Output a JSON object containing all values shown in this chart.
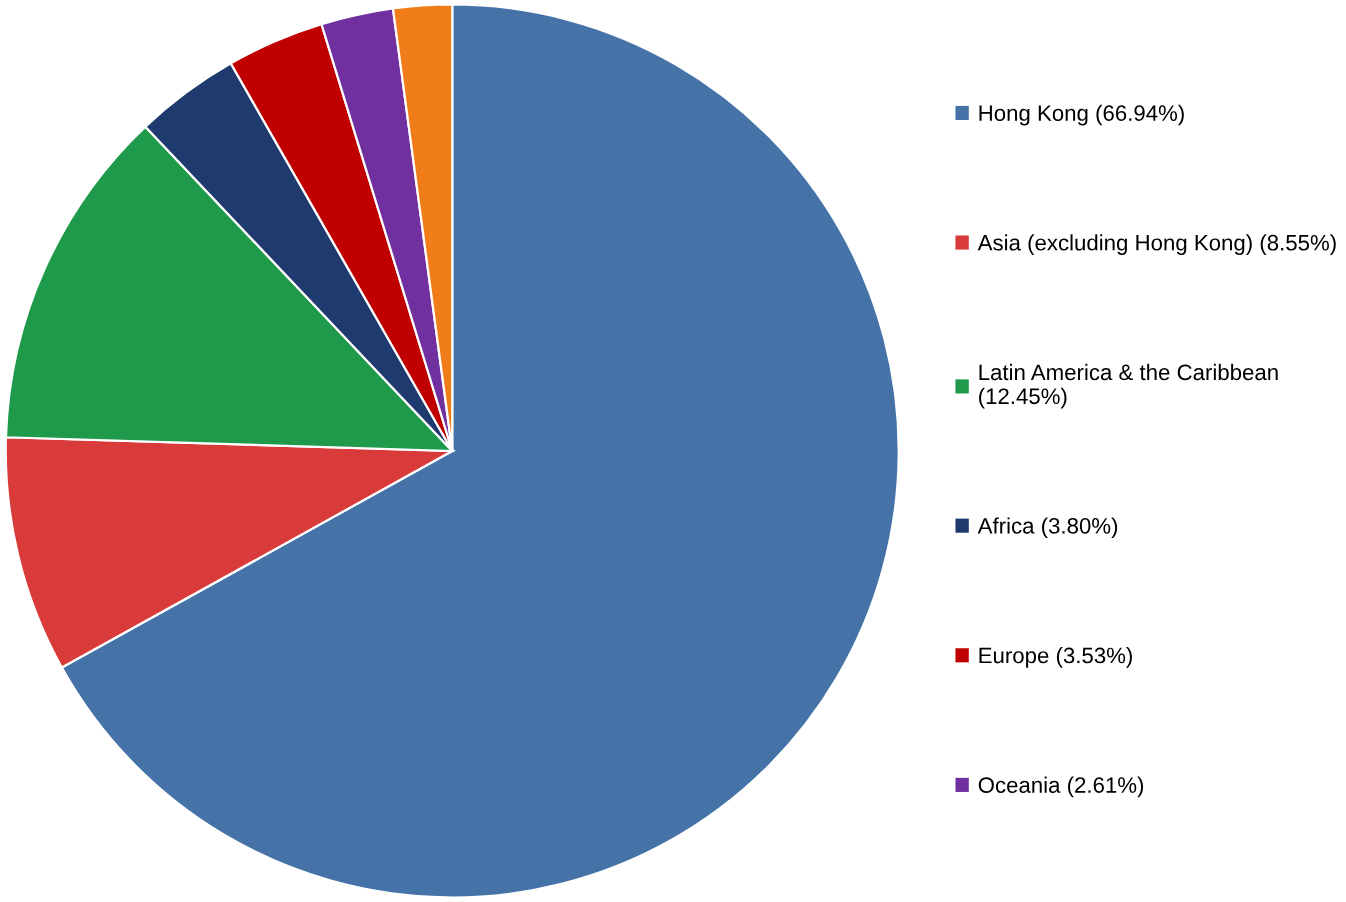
{
  "chart_data": {
    "type": "pie",
    "categories": [
      "Hong Kong (66.94%)",
      "Asia (excluding Hong Kong) (8.55%)",
      "Latin America & the Caribbean\n(12.45%)",
      "Africa (3.80%)",
      "Europe (3.53%)",
      "Oceania (2.61%)",
      null
    ],
    "values": [
      66.94,
      8.55,
      12.45,
      3.8,
      3.53,
      2.61,
      2.12
    ],
    "colors": [
      "#4573a8",
      "#d93a3a",
      "#1f9a4a",
      "#1f3a6e",
      "#c00000",
      "#7030a0",
      "#f07d1a"
    ],
    "legend": "right"
  }
}
